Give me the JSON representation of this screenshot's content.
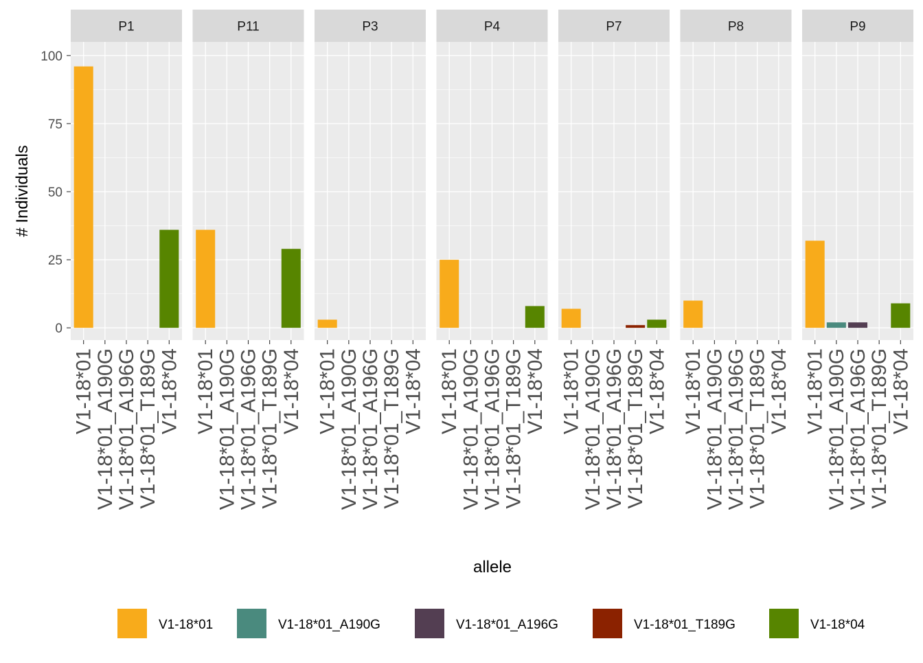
{
  "chart_data": {
    "type": "bar",
    "facet_by": "sample",
    "ylabel": "# Individuals",
    "xlabel": "allele",
    "ylim": [
      -4.5,
      105
    ],
    "yticks": [
      0,
      25,
      50,
      75,
      100
    ],
    "grid": true,
    "legend_position": "bottom",
    "categories": [
      "V1-18*01",
      "V1-18*01_A190G",
      "V1-18*01_A196G",
      "V1-18*01_T189G",
      "V1-18*04"
    ],
    "colors": {
      "V1-18*01": "#F8AB1B",
      "V1-18*01_A190G": "#4A8A7E",
      "V1-18*01_A196G": "#533E52",
      "V1-18*01_T189G": "#8B2200",
      "V1-18*04": "#578500"
    },
    "facets": [
      {
        "name": "P1",
        "values": [
          96,
          0,
          0,
          0,
          36
        ]
      },
      {
        "name": "P11",
        "values": [
          36,
          0,
          0,
          0,
          29
        ]
      },
      {
        "name": "P3",
        "values": [
          3,
          0,
          0,
          0,
          0
        ]
      },
      {
        "name": "P4",
        "values": [
          25,
          0,
          0,
          0,
          8
        ]
      },
      {
        "name": "P7",
        "values": [
          7,
          0,
          0,
          1,
          3
        ]
      },
      {
        "name": "P8",
        "values": [
          10,
          0,
          0,
          0,
          0
        ]
      },
      {
        "name": "P9",
        "values": [
          32,
          2,
          2,
          0,
          9
        ]
      }
    ],
    "legend": [
      "V1-18*01",
      "V1-18*01_A190G",
      "V1-18*01_A196G",
      "V1-18*01_T189G",
      "V1-18*04"
    ]
  }
}
